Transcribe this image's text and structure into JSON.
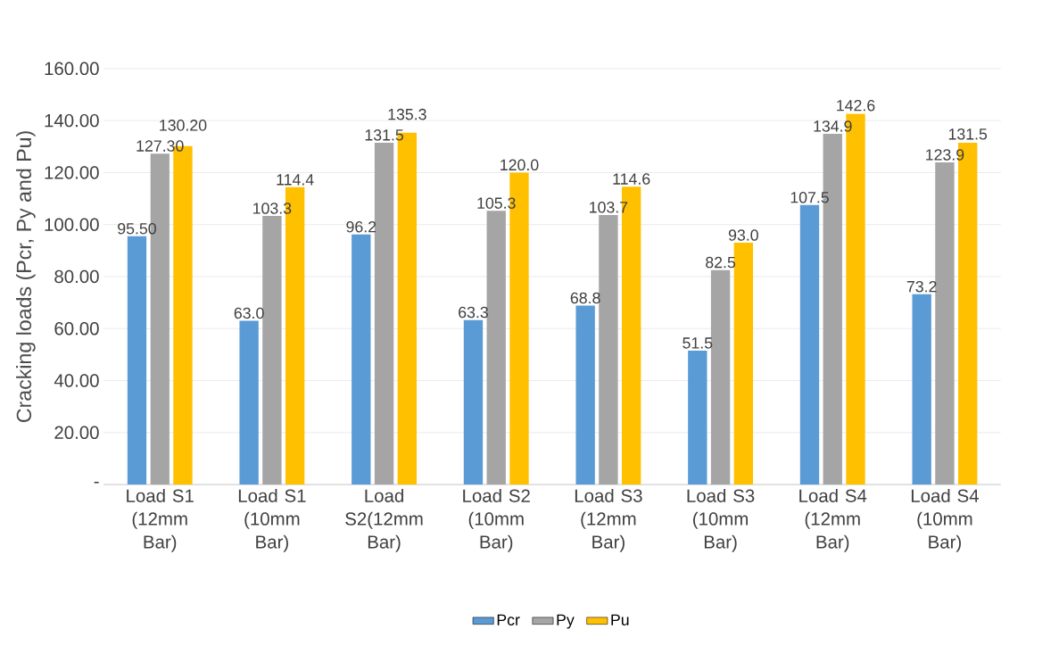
{
  "chart_data": {
    "type": "bar",
    "ylabel": "Cracking loads (Pcr, Py and Pu)",
    "categories": [
      "Load S1 (12mm Bar)",
      "Load S1 (10mm Bar)",
      "Load S2(12mm Bar)",
      "Load S2 (10mm Bar)",
      "Load S3 (12mm Bar)",
      "Load S3 (10mm Bar)",
      "Load S4 (12mm Bar)",
      "Load S4 (10mm Bar)"
    ],
    "series": [
      {
        "name": "Pcr",
        "color": "#5b9bd5",
        "values": [
          95.5,
          63.0,
          96.2,
          63.3,
          68.8,
          51.5,
          107.5,
          73.2
        ],
        "value_labels": [
          "95.50",
          "63.0",
          "96.2",
          "63.3",
          "68.8",
          "51.5",
          "107.5",
          "73.2"
        ]
      },
      {
        "name": "Py",
        "color": "#a5a5a5",
        "values": [
          127.3,
          103.3,
          131.5,
          105.3,
          103.7,
          82.5,
          134.9,
          123.9
        ],
        "value_labels": [
          "127.30",
          "103.3",
          "131.5",
          "105.3",
          "103.7",
          "82.5",
          "134.9",
          "123.9"
        ]
      },
      {
        "name": "Pu",
        "color": "#ffc000",
        "values": [
          130.2,
          114.4,
          135.3,
          120.0,
          114.6,
          93.0,
          142.6,
          131.5
        ],
        "value_labels": [
          "130.20",
          "114.4",
          "135.3",
          "120.0",
          "114.6",
          "93.0",
          "142.6",
          "131.5"
        ]
      }
    ],
    "ylim": [
      0,
      160
    ],
    "yticks": [
      {
        "value": 0,
        "label": "-"
      },
      {
        "value": 20,
        "label": "20.00"
      },
      {
        "value": 40,
        "label": "40.00"
      },
      {
        "value": 60,
        "label": "60.00"
      },
      {
        "value": 80,
        "label": "80.00"
      },
      {
        "value": 100,
        "label": "100.00"
      },
      {
        "value": 120,
        "label": "120.00"
      },
      {
        "value": 140,
        "label": "140.00"
      },
      {
        "value": 160,
        "label": "160.00"
      }
    ],
    "grid": "y",
    "legend": "bottom"
  }
}
